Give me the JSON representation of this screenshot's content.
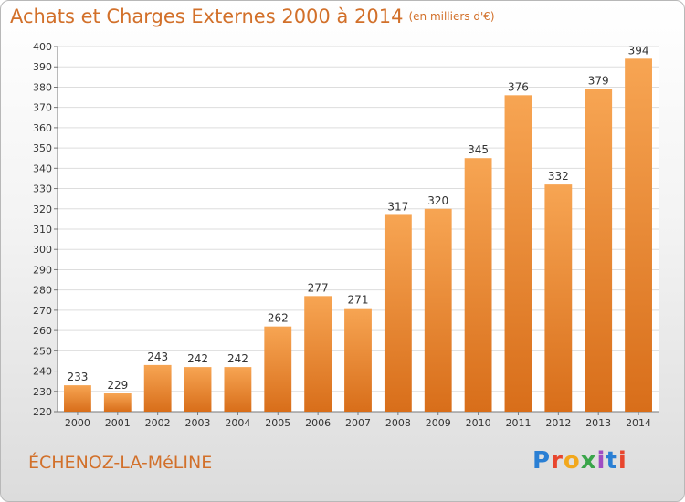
{
  "header": {
    "title": "Achats et Charges Externes 2000 à 2014",
    "subtitle": "(en milliers d'€)"
  },
  "footer": {
    "commune": "ÉCHENOZ-LA-MéLINE",
    "logo": "Proxiti"
  },
  "colors": {
    "bar_top": "#f7a553",
    "bar_bottom": "#d86e1a",
    "title": "#d2702a",
    "grid": "#dddddd"
  },
  "chart_data": {
    "type": "bar",
    "title": "Achats et Charges Externes 2000 à 2014",
    "subtitle": "(en milliers d'€)",
    "xlabel": "",
    "ylabel": "",
    "categories": [
      "2000",
      "2001",
      "2002",
      "2003",
      "2004",
      "2005",
      "2006",
      "2007",
      "2008",
      "2009",
      "2010",
      "2011",
      "2012",
      "2013",
      "2014"
    ],
    "values": [
      233,
      229,
      243,
      242,
      242,
      262,
      277,
      271,
      317,
      320,
      345,
      376,
      332,
      379,
      394
    ],
    "ylim": [
      220,
      400
    ],
    "yticks": [
      220,
      230,
      240,
      250,
      260,
      270,
      280,
      290,
      300,
      310,
      320,
      330,
      340,
      350,
      360,
      370,
      380,
      390,
      400
    ],
    "grid": true,
    "data_labels": true
  }
}
